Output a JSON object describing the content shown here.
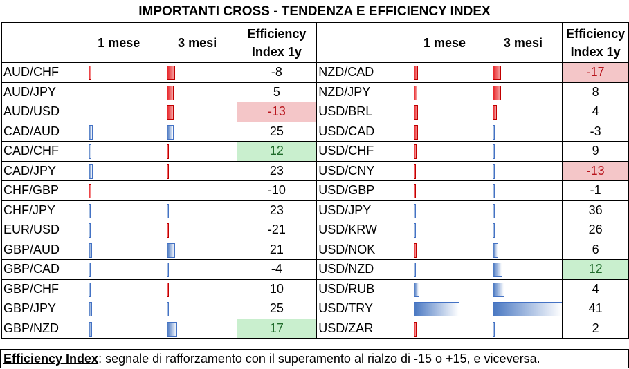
{
  "title": "IMPORTANTI CROSS - TENDENZA E EFFICIENCY INDEX",
  "headers": {
    "m1": "1 mese",
    "m3": "3 mesi",
    "eff1": "Efficiency",
    "eff2": "Index 1y"
  },
  "colors": {
    "negative_fill": "#f4c6c8",
    "negative_text": "#b8141c",
    "positive_fill": "#c9efce",
    "positive_text": "#1f6b2a",
    "bar_red": "#e8262a",
    "bar_blue": "#4472c4"
  },
  "left": [
    {
      "pair": "AUD/CHF",
      "m1": -0.04,
      "m3": -0.12,
      "eff": "-8"
    },
    {
      "pair": "AUD/JPY",
      "m1": 0,
      "m3": -0.1,
      "eff": "5"
    },
    {
      "pair": "AUD/USD",
      "m1": 0,
      "m3": -0.1,
      "eff": "-13",
      "hl": "neg"
    },
    {
      "pair": "CAD/AUD",
      "m1": 0.06,
      "m3": 0.1,
      "eff": "25"
    },
    {
      "pair": "CAD/CHF",
      "m1": 0.04,
      "m3": -0.02,
      "eff": "12",
      "hl": "pos"
    },
    {
      "pair": "CAD/JPY",
      "m1": 0.06,
      "m3": -0.02,
      "eff": "23"
    },
    {
      "pair": "CHF/GBP",
      "m1": -0.04,
      "m3": 0,
      "eff": "-10"
    },
    {
      "pair": "CHF/JPY",
      "m1": 0.03,
      "m3": 0.02,
      "eff": "23"
    },
    {
      "pair": "EUR/USD",
      "m1": 0.03,
      "m3": -0.02,
      "eff": "-21"
    },
    {
      "pair": "GBP/AUD",
      "m1": 0.05,
      "m3": 0.12,
      "eff": "21"
    },
    {
      "pair": "GBP/CAD",
      "m1": 0.02,
      "m3": 0.02,
      "eff": "-4"
    },
    {
      "pair": "GBP/CHF",
      "m1": 0.03,
      "m3": -0.02,
      "eff": "10"
    },
    {
      "pair": "GBP/JPY",
      "m1": 0.05,
      "m3": 0.02,
      "eff": "25"
    },
    {
      "pair": "GBP/NZD",
      "m1": 0.05,
      "m3": 0.15,
      "eff": "17",
      "hl": "pos"
    }
  ],
  "right": [
    {
      "pair": "NZD/CAD",
      "m1": -0.06,
      "m3": -0.12,
      "eff": "-17",
      "hl": "neg"
    },
    {
      "pair": "NZD/JPY",
      "m1": -0.05,
      "m3": -0.12,
      "eff": "8"
    },
    {
      "pair": "USD/BRL",
      "m1": -0.06,
      "m3": -0.06,
      "eff": "4"
    },
    {
      "pair": "USD/CAD",
      "m1": -0.06,
      "m3": 0.03,
      "eff": "-3"
    },
    {
      "pair": "USD/CHF",
      "m1": -0.04,
      "m3": 0.02,
      "eff": "9"
    },
    {
      "pair": "USD/CNY",
      "m1": -0.02,
      "m3": 0.02,
      "eff": "-13",
      "hl": "neg"
    },
    {
      "pair": "USD/GBP",
      "m1": -0.02,
      "m3": 0.02,
      "eff": "-1"
    },
    {
      "pair": "USD/JPY",
      "m1": 0.01,
      "m3": 0.02,
      "eff": "36"
    },
    {
      "pair": "USD/KRW",
      "m1": 0.02,
      "m3": 0.03,
      "eff": "26"
    },
    {
      "pair": "USD/NOK",
      "m1": -0.04,
      "m3": 0.08,
      "eff": "6"
    },
    {
      "pair": "USD/NZD",
      "m1": 0.02,
      "m3": 0.14,
      "eff": "12",
      "hl": "pos"
    },
    {
      "pair": "USD/RUB",
      "m1": 0.08,
      "m3": 0.17,
      "eff": "4"
    },
    {
      "pair": "USD/TRY",
      "m1": 0.66,
      "m3": 1.0,
      "eff": "41"
    },
    {
      "pair": "USD/ZAR",
      "m1": -0.04,
      "m3": 0.02,
      "eff": "2"
    }
  ],
  "footer": {
    "label": "Efficiency Index",
    "text": ": segnale di rafforzamento con il superamento al rialzo di -15 o +15, e viceversa."
  }
}
